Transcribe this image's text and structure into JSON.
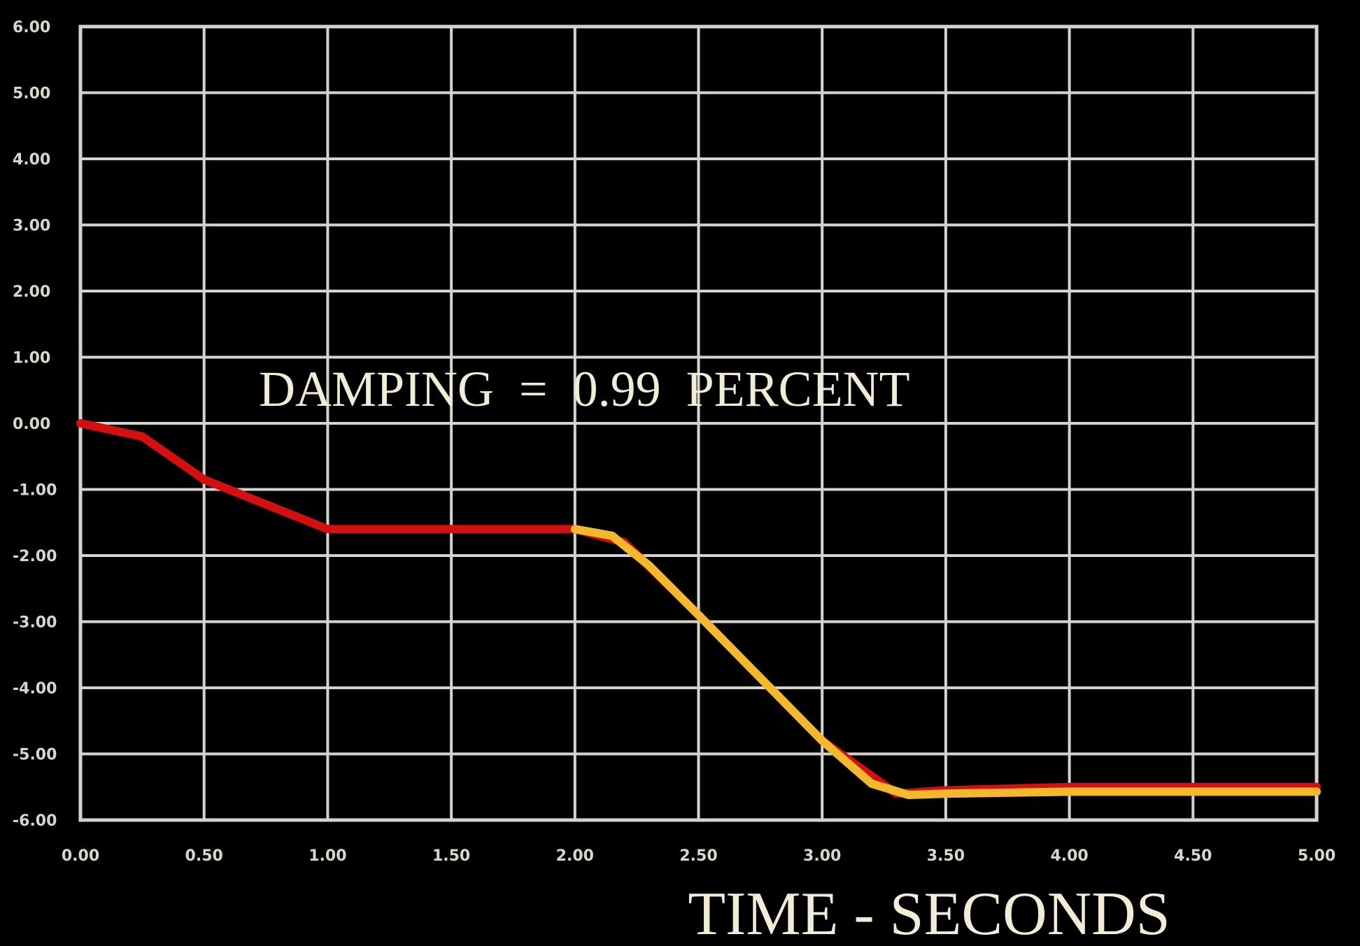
{
  "chart_data": {
    "type": "line",
    "xlabel": "TIME - SECONDS",
    "ylabel": "",
    "xlim": [
      0,
      5
    ],
    "ylim": [
      -6,
      6
    ],
    "grid": true,
    "x_ticks": [
      "0.00",
      "0.50",
      "1.00",
      "1.50",
      "2.00",
      "2.50",
      "3.00",
      "3.50",
      "4.00",
      "4.50",
      "5.00"
    ],
    "y_ticks": [
      "6.00",
      "5.00",
      "4.00",
      "3.00",
      "2.00",
      "1.00",
      "0.00",
      "-1.00",
      "-2.00",
      "-3.00",
      "-4.00",
      "-5.00",
      "-6.00"
    ],
    "annotation": "DAMPING  =  0.99  PERCENT",
    "series": [
      {
        "color": "#d40f0f",
        "x": [
          0.0,
          0.25,
          0.5,
          1.0,
          1.5,
          2.0,
          2.2,
          2.5,
          3.0,
          3.3,
          3.5,
          4.0,
          4.5,
          5.0
        ],
        "y": [
          0.0,
          -0.2,
          -0.85,
          -1.6,
          -1.6,
          -1.6,
          -1.8,
          -2.9,
          -4.8,
          -5.6,
          -5.55,
          -5.5,
          -5.5,
          -5.5
        ]
      },
      {
        "color": "#f2b92c",
        "x": [
          2.0,
          2.15,
          2.3,
          2.5,
          2.75,
          3.0,
          3.2,
          3.35,
          3.5,
          4.0,
          4.5,
          5.0
        ],
        "y": [
          -1.6,
          -1.7,
          -2.15,
          -2.9,
          -3.85,
          -4.8,
          -5.45,
          -5.62,
          -5.6,
          -5.57,
          -5.57,
          -5.57
        ]
      }
    ]
  }
}
